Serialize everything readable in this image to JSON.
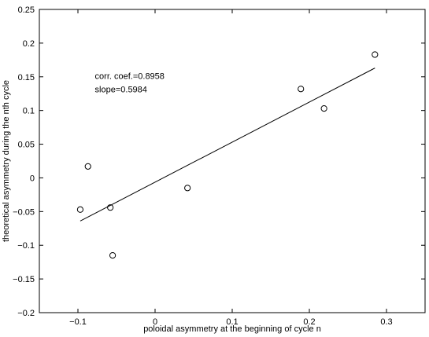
{
  "chart_data": {
    "type": "scatter",
    "title": "",
    "xlabel": "poloidal asymmetry at the beginning of cycle n",
    "ylabel": "theoretical asymmetry during the nth cycle",
    "xlim": [
      -0.15,
      0.35
    ],
    "ylim": [
      -0.2,
      0.25
    ],
    "xticks": [
      -0.1,
      0,
      0.1,
      0.2,
      0.3
    ],
    "xtick_labels": [
      "−0.1",
      "0",
      "0.1",
      "0.2",
      "0.3"
    ],
    "yticks": [
      -0.2,
      -0.15,
      -0.1,
      -0.05,
      0,
      0.05,
      0.1,
      0.15,
      0.2,
      0.25
    ],
    "ytick_labels": [
      "−0.2",
      "−0.15",
      "−0.1",
      "−0.05",
      "0",
      "0.05",
      "0.1",
      "0.15",
      "0.2",
      "0.25"
    ],
    "grid": false,
    "points": [
      {
        "x": -0.097,
        "y": -0.047
      },
      {
        "x": -0.087,
        "y": 0.017
      },
      {
        "x": -0.058,
        "y": -0.044
      },
      {
        "x": -0.055,
        "y": -0.115
      },
      {
        "x": 0.042,
        "y": -0.015
      },
      {
        "x": 0.189,
        "y": 0.132
      },
      {
        "x": 0.219,
        "y": 0.103
      },
      {
        "x": 0.285,
        "y": 0.183
      }
    ],
    "fit_line": {
      "x": [
        -0.097,
        0.285
      ],
      "y": [
        -0.064,
        0.163
      ]
    },
    "annotations": [
      {
        "text": "corr. coef.=0.8958",
        "x": -0.078,
        "y": 0.147
      },
      {
        "text": "slope=0.5984",
        "x": -0.078,
        "y": 0.127
      }
    ]
  }
}
